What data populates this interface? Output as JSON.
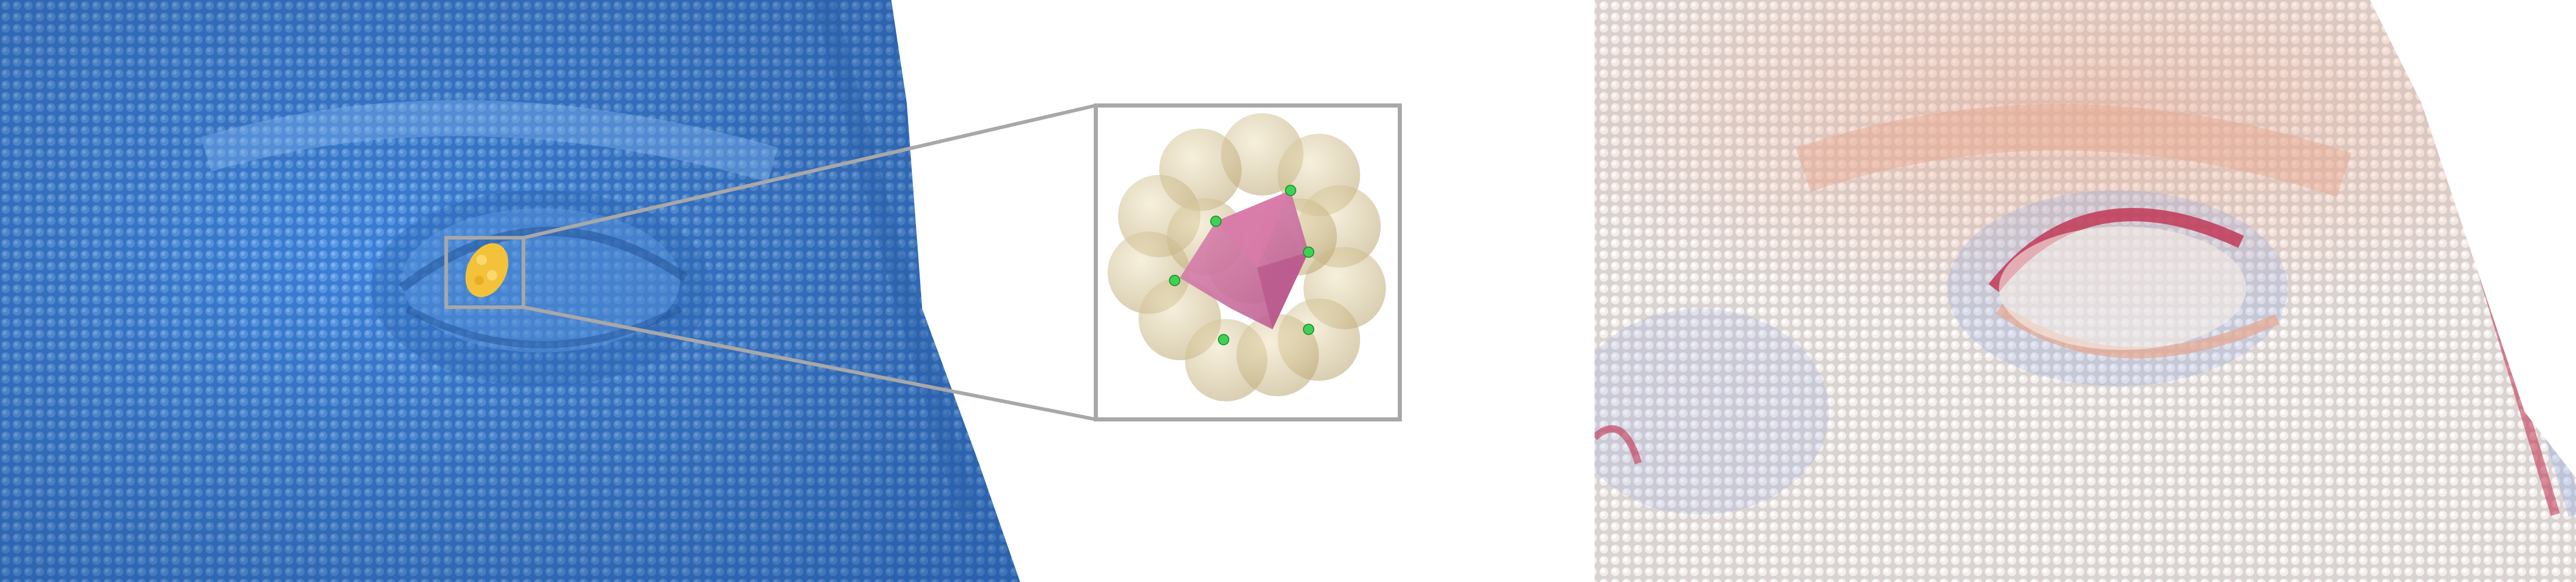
{
  "figure": {
    "panels": [
      {
        "id": "left",
        "content": "point-cloud-face-closeup-eye",
        "base_color": "#4a8fe0",
        "highlight_color": "#f3c23a"
      },
      {
        "id": "inset",
        "content": "zoomed-local-patch",
        "frame_color": "#a8a8a8",
        "sphere_color": "#d8c79a",
        "triangle_color": "#c86a9a",
        "marker_color": "#3fd155"
      },
      {
        "id": "right",
        "content": "point-cloud-face-curvature-colormap",
        "colors": {
          "low": "#7c9ae0",
          "neutral": "#f4f0ee",
          "mid": "#e6a78e",
          "high": "#c0304f"
        }
      }
    ]
  }
}
